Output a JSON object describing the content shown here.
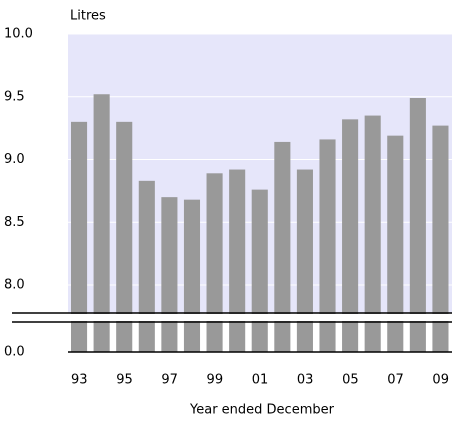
{
  "chart_data": {
    "type": "bar",
    "y_label": "Litres",
    "x_label": "Year ended December",
    "categories": [
      "93",
      null,
      "95",
      null,
      "97",
      null,
      "99",
      null,
      "01",
      null,
      "03",
      null,
      "05",
      null,
      "07",
      null,
      "09"
    ],
    "values": [
      9.3,
      9.52,
      9.3,
      8.83,
      8.7,
      8.68,
      8.89,
      8.92,
      8.76,
      9.14,
      8.92,
      9.16,
      9.32,
      9.35,
      9.19,
      9.49,
      9.27
    ],
    "color": "#999999",
    "plot_background": "#e6e6fa",
    "ylim": [
      0,
      10
    ],
    "yticks": [
      {
        "value": 0,
        "label": "0.0"
      },
      {
        "value": 8,
        "label": "8.0"
      },
      {
        "value": 8.5,
        "label": "8.5"
      },
      {
        "value": 9,
        "label": "9.0"
      },
      {
        "value": 9.5,
        "label": "9.5"
      },
      {
        "value": 10,
        "label": "10.0"
      }
    ],
    "axis_break": true,
    "grid": true
  }
}
